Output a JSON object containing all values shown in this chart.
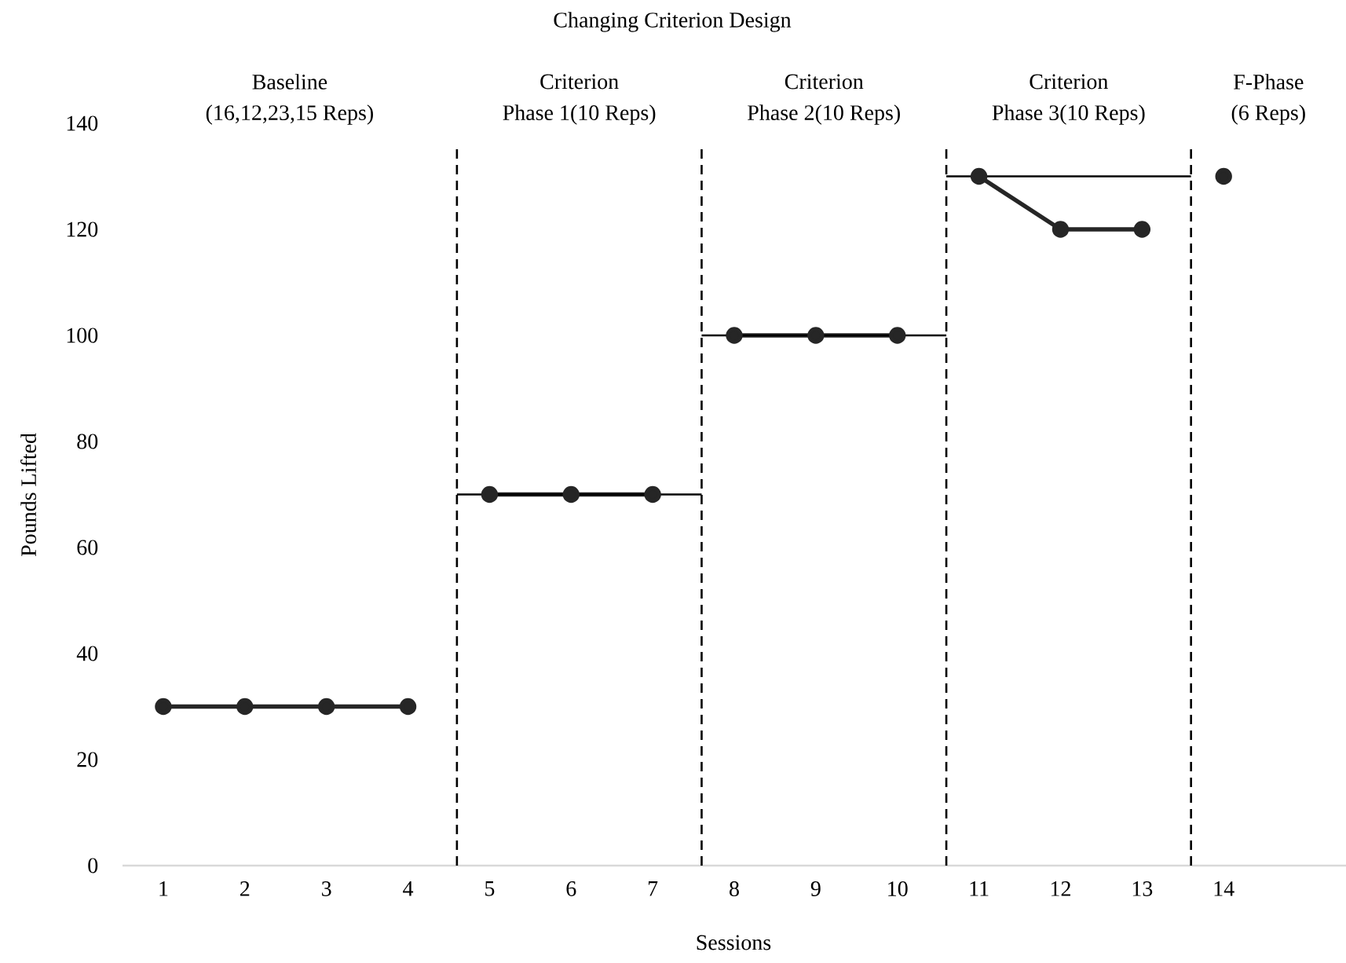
{
  "chart_data": {
    "type": "line",
    "title": "Changing Criterion Design",
    "xlabel": "Sessions",
    "ylabel": "Pounds Lifted",
    "annotations": [
      "Baseline",
      "(16,12,23,15 Reps)",
      "Criterion",
      "Phase 1(10 Reps)",
      "Criterion",
      "Phase 2(10 Reps)",
      "Criterion",
      "Phase 3(10 Reps)",
      "F-Phase",
      "(6 Reps)"
    ],
    "xlim": [
      0.5,
      15.5
    ],
    "xticks": [
      1,
      2,
      3,
      4,
      5,
      6,
      7,
      8,
      9,
      10,
      11,
      12,
      13,
      14
    ],
    "ylim": [
      0,
      140
    ],
    "yticks": [
      0,
      20,
      40,
      60,
      80,
      100,
      120,
      140
    ],
    "marker": "circle",
    "grid": false,
    "series": [
      {
        "color": "#262626",
        "x": [
          1,
          2,
          3,
          4
        ],
        "values": [
          30,
          30,
          30,
          30
        ]
      },
      {
        "color": "#262626",
        "x": [
          5,
          6,
          7
        ],
        "values": [
          70,
          70,
          70
        ]
      },
      {
        "color": "#262626",
        "x": [
          8,
          9,
          10
        ],
        "values": [
          100,
          100,
          100
        ]
      },
      {
        "color": "#262626",
        "x": [
          11,
          12,
          13
        ],
        "values": [
          130,
          120,
          120
        ]
      },
      {
        "color": "#262626",
        "x": [
          14
        ],
        "values": [
          130
        ]
      },
      {
        "color": "#000000",
        "marker": "none",
        "x": [
          4.6,
          7.6
        ],
        "values": [
          70,
          70
        ]
      },
      {
        "color": "#000000",
        "marker": "none",
        "x": [
          7.6,
          10.6
        ],
        "values": [
          100,
          100
        ]
      },
      {
        "color": "#000000",
        "marker": "none",
        "x": [
          10.6,
          13.6
        ],
        "values": [
          130,
          130
        ]
      }
    ],
    "ref_lines": [
      {
        "axis": "x",
        "value": 4.6,
        "color": "#000000",
        "line_style": "dashed"
      },
      {
        "axis": "x",
        "value": 7.6,
        "color": "#000000",
        "line_style": "dashed"
      },
      {
        "axis": "x",
        "value": 10.6,
        "color": "#000000",
        "line_style": "dashed"
      },
      {
        "axis": "x",
        "value": 13.6,
        "color": "#000000",
        "line_style": "dashed"
      }
    ]
  }
}
